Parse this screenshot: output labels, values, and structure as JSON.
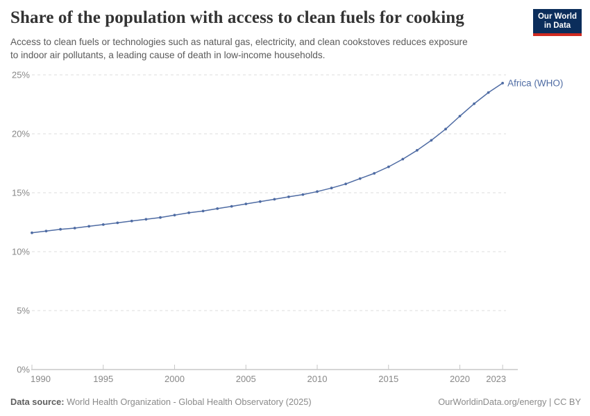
{
  "header": {
    "title": "Share of the population with access to clean fuels for cooking",
    "subtitle_lines": [
      "Access to clean fuels or technologies such as natural gas, electricity, and clean cookstoves reduces exposure",
      "to indoor air pollutants, a leading cause of death in low-income households."
    ],
    "logo": {
      "line1": "Our World",
      "line2": "in Data"
    }
  },
  "chart_data": {
    "type": "line",
    "title": "Share of the population with access to clean fuels for cooking",
    "xlabel": "",
    "ylabel": "",
    "xlim": [
      1990,
      2023
    ],
    "ylim": [
      0,
      25
    ],
    "grid": "horizontal-dashed",
    "legend_position": "end-of-line-label",
    "xticks": [
      1990,
      1995,
      2000,
      2005,
      2010,
      2015,
      2020,
      2023
    ],
    "ytick_values": [
      0,
      5,
      10,
      15,
      20,
      25
    ],
    "ytick_labels": [
      "0%",
      "5%",
      "10%",
      "15%",
      "20%",
      "25%"
    ],
    "series": [
      {
        "name": "Africa (WHO)",
        "color": "#4e6ba3",
        "x": [
          1990,
          1991,
          1992,
          1993,
          1994,
          1995,
          1996,
          1997,
          1998,
          1999,
          2000,
          2001,
          2002,
          2003,
          2004,
          2005,
          2006,
          2007,
          2008,
          2009,
          2010,
          2011,
          2012,
          2013,
          2014,
          2015,
          2016,
          2017,
          2018,
          2019,
          2020,
          2021,
          2022,
          2023
        ],
        "values": [
          11.6,
          11.75,
          11.9,
          12.0,
          12.15,
          12.3,
          12.45,
          12.6,
          12.75,
          12.9,
          13.1,
          13.3,
          13.45,
          13.65,
          13.85,
          14.05,
          14.25,
          14.45,
          14.65,
          14.85,
          15.1,
          15.4,
          15.75,
          16.2,
          16.65,
          17.2,
          17.85,
          18.6,
          19.45,
          20.4,
          21.5,
          22.55,
          23.5,
          24.3
        ]
      }
    ]
  },
  "footer": {
    "source_label": "Data source:",
    "source": "World Health Organization - Global Health Observatory (2025)",
    "credit": "OurWorldinData.org/energy | CC BY"
  },
  "colors": {
    "line": "#4e6ba3",
    "gridline": "#dcdcdc",
    "axis": "#ababab",
    "tick_label": "#888888",
    "logo_bg": "#0b2d5b",
    "logo_stripe": "#d02a20"
  }
}
